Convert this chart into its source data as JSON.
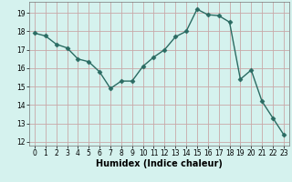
{
  "x": [
    0,
    1,
    2,
    3,
    4,
    5,
    6,
    7,
    8,
    9,
    10,
    11,
    12,
    13,
    14,
    15,
    16,
    17,
    18,
    19,
    20,
    21,
    22,
    23
  ],
  "y": [
    17.9,
    17.75,
    17.3,
    17.1,
    16.5,
    16.35,
    15.8,
    14.9,
    15.3,
    15.3,
    16.1,
    16.6,
    17.0,
    17.7,
    18.0,
    19.2,
    18.9,
    18.85,
    18.5,
    15.4,
    15.9,
    14.2,
    13.3,
    12.4
  ],
  "xlabel": "Humidex (Indice chaleur)",
  "ylim": [
    11.8,
    19.6
  ],
  "xlim": [
    -0.5,
    23.5
  ],
  "line_color": "#2a6b62",
  "marker": "D",
  "marker_size": 2.5,
  "bg_color": "#d5f2ee",
  "grid_color_major": "#c8a8a8",
  "grid_color_minor": "#ddc8c8",
  "yticks": [
    12,
    13,
    14,
    15,
    16,
    17,
    18,
    19
  ],
  "xticks": [
    0,
    1,
    2,
    3,
    4,
    5,
    6,
    7,
    8,
    9,
    10,
    11,
    12,
    13,
    14,
    15,
    16,
    17,
    18,
    19,
    20,
    21,
    22,
    23
  ],
  "tick_fontsize": 5.5,
  "xlabel_fontsize": 7
}
